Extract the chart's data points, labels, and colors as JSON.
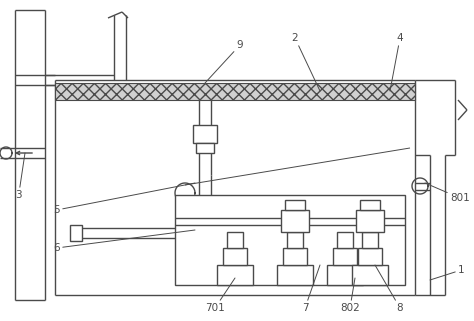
{
  "bg_color": "#ffffff",
  "line_color": "#4a4a4a",
  "figsize": [
    4.74,
    3.21
  ],
  "dpi": 100,
  "label_fs": 7.5,
  "lw": 1.0
}
